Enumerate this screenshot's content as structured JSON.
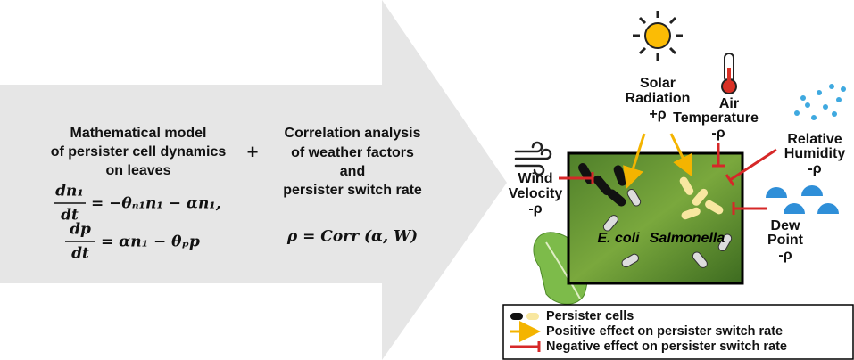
{
  "left_panel": {
    "title_lines": [
      "Mathematical model",
      "of persister cell dynamics",
      "on leaves"
    ],
    "equations": [
      {
        "numerator": "dn₁",
        "denominator": "dt",
        "rhs": "= −θₙ₁n₁ − αn₁,"
      },
      {
        "numerator": "dp",
        "denominator": "dt",
        "rhs": "= αn₁ − θₚp"
      }
    ]
  },
  "plus": "+",
  "middle_panel": {
    "title_lines": [
      "Correlation analysis",
      "of weather factors",
      "and",
      "persister switch rate"
    ],
    "equation": "ρ = Corr (α, W)"
  },
  "factors": [
    {
      "name_lines": [
        "Solar",
        "Radiation"
      ],
      "effect": "+ρ"
    },
    {
      "name_lines": [
        "Air",
        "Temperature"
      ],
      "effect": "-ρ"
    },
    {
      "name_lines": [
        "Relative",
        "Humidity"
      ],
      "effect": "-ρ"
    },
    {
      "name_lines": [
        "Dew",
        "Point"
      ],
      "effect": "-ρ"
    },
    {
      "name_lines": [
        "Wind",
        "Velocity"
      ],
      "effect": "-ρ"
    }
  ],
  "bacteria": [
    "E. coli",
    "Salmonella"
  ],
  "legend": [
    "Persister cells",
    "Positive effect on persister switch rate",
    "Negative effect on persister switch rate"
  ]
}
